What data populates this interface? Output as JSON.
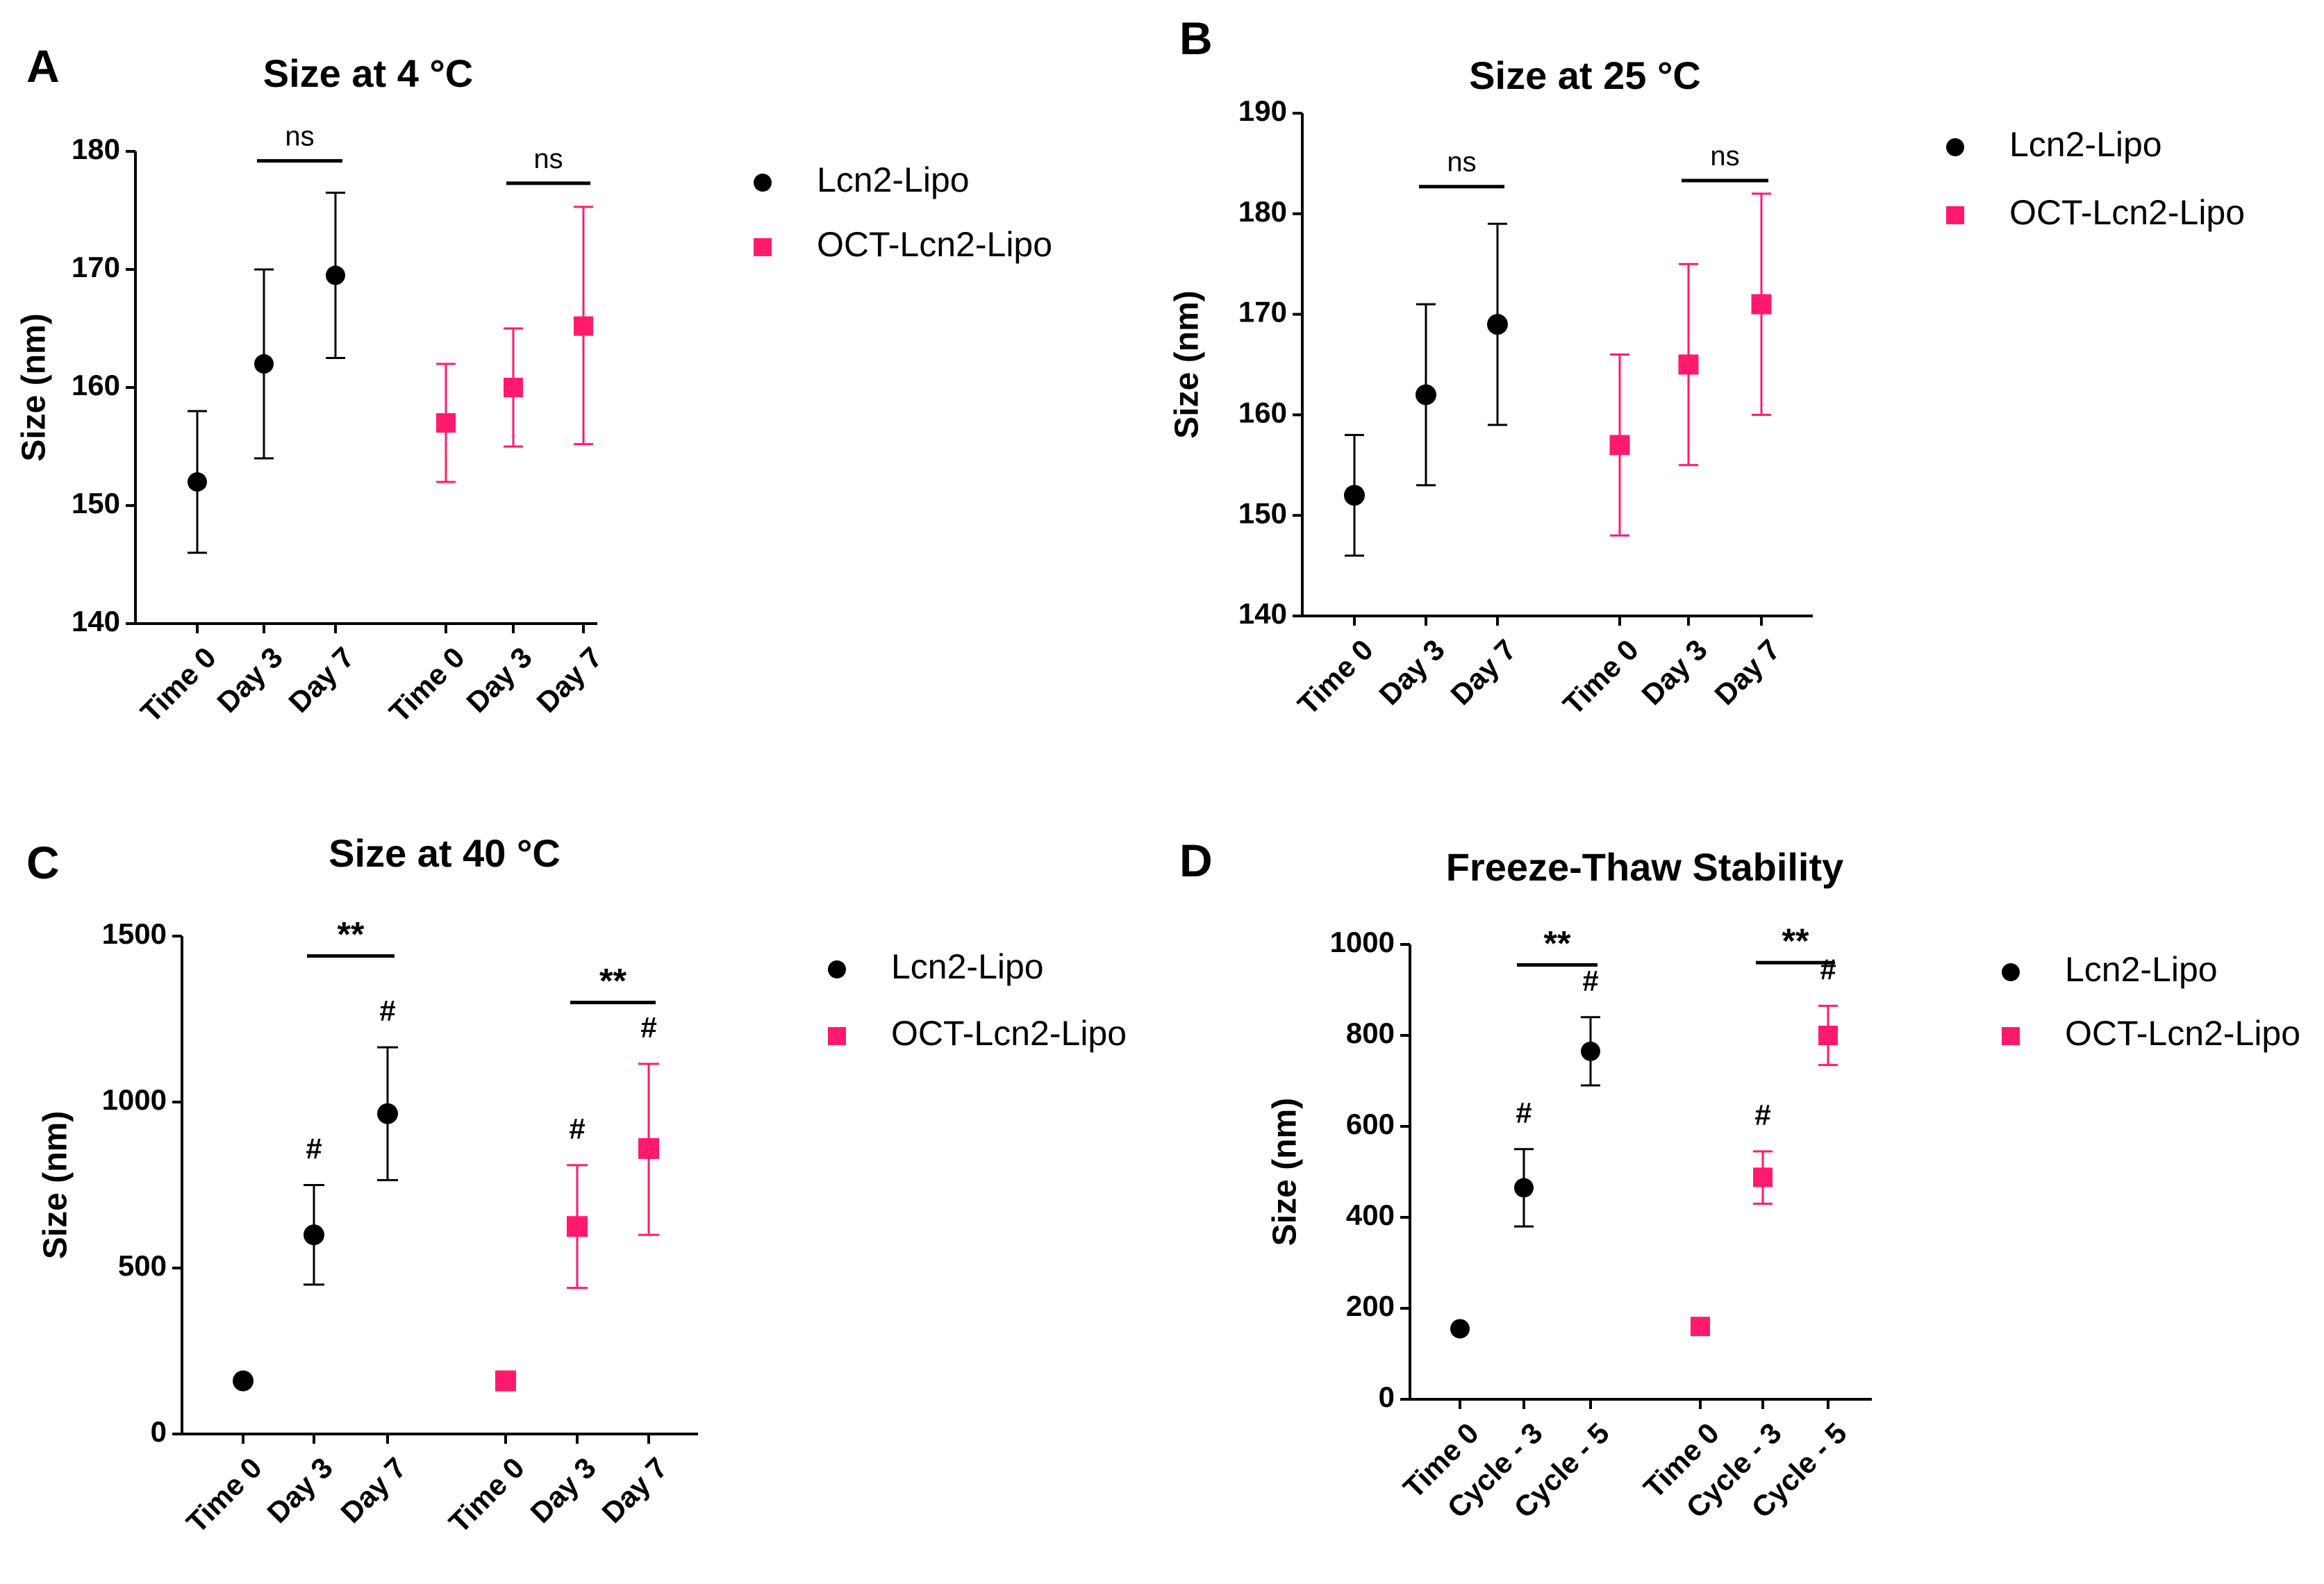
{
  "colors": {
    "Lcn2-Lipo": "#000000",
    "OCT-Lcn2-Lipo": "#ff1a6e"
  },
  "chart_data": [
    {
      "panel": "A",
      "type": "scatter",
      "title": "Size at 4 °C",
      "xlabel": "",
      "ylabel": "Size (nm)",
      "ylim": [
        140,
        180
      ],
      "yticks": [
        140,
        150,
        160,
        170,
        180
      ],
      "legend": [
        "Lcn2-Lipo",
        "OCT-Lcn2-Lipo"
      ],
      "legend_position": "right",
      "groups": [
        {
          "series": "Lcn2-Lipo",
          "categories": [
            "Time 0",
            "Day 3",
            "Day 7"
          ],
          "values": [
            152,
            162,
            169.5
          ],
          "err_low": [
            146,
            154,
            162.5
          ],
          "err_high": [
            158,
            170,
            176.5
          ]
        },
        {
          "series": "OCT-Lcn2-Lipo",
          "categories": [
            "Time 0",
            "Day 3",
            "Day 7"
          ],
          "values": [
            157,
            160,
            165.2
          ],
          "err_low": [
            152,
            155,
            155.2
          ],
          "err_high": [
            162,
            165,
            175.3
          ]
        }
      ],
      "significance": [
        {
          "group": 0,
          "from": 1,
          "to": 2,
          "label": "ns",
          "y": 179.2
        },
        {
          "group": 1,
          "from": 1,
          "to": 2,
          "label": "ns",
          "y": 177.3
        }
      ],
      "hash_marks": []
    },
    {
      "panel": "B",
      "type": "scatter",
      "title": "Size at 25 °C",
      "xlabel": "",
      "ylabel": "Size (nm)",
      "ylim": [
        140,
        190
      ],
      "yticks": [
        140,
        150,
        160,
        170,
        180,
        190
      ],
      "legend": [
        "Lcn2-Lipo",
        "OCT-Lcn2-Lipo"
      ],
      "legend_position": "right",
      "groups": [
        {
          "series": "Lcn2-Lipo",
          "categories": [
            "Time 0",
            "Day 3",
            "Day 7"
          ],
          "values": [
            152,
            162,
            169
          ],
          "err_low": [
            146,
            153,
            159
          ],
          "err_high": [
            158,
            171,
            179
          ]
        },
        {
          "series": "OCT-Lcn2-Lipo",
          "categories": [
            "Time 0",
            "Day 3",
            "Day 7"
          ],
          "values": [
            157,
            165,
            171
          ],
          "err_low": [
            148,
            155,
            160
          ],
          "err_high": [
            166,
            175,
            182
          ]
        }
      ],
      "significance": [
        {
          "group": 0,
          "from": 1,
          "to": 2,
          "label": "ns",
          "y": 182.7
        },
        {
          "group": 1,
          "from": 1,
          "to": 2,
          "label": "ns",
          "y": 183.3
        }
      ],
      "hash_marks": []
    },
    {
      "panel": "C",
      "type": "scatter",
      "title": "Size at 40 °C",
      "xlabel": "",
      "ylabel": "Size (nm)",
      "ylim": [
        0,
        1500
      ],
      "yticks": [
        0,
        500,
        1000,
        1500
      ],
      "legend": [
        "Lcn2-Lipo",
        "OCT-Lcn2-Lipo"
      ],
      "legend_position": "right",
      "groups": [
        {
          "series": "Lcn2-Lipo",
          "categories": [
            "Time 0",
            "Day 3",
            "Day 7"
          ],
          "values": [
            160,
            600,
            965
          ],
          "err_low": [
            160,
            450,
            765
          ],
          "err_high": [
            160,
            750,
            1165
          ]
        },
        {
          "series": "OCT-Lcn2-Lipo",
          "categories": [
            "Time 0",
            "Day 3",
            "Day 7"
          ],
          "values": [
            160,
            625,
            860
          ],
          "err_low": [
            160,
            440,
            600
          ],
          "err_high": [
            160,
            810,
            1115
          ]
        }
      ],
      "significance": [
        {
          "group": 0,
          "from": 1,
          "to": 2,
          "label": "**",
          "y": 1440
        },
        {
          "group": 1,
          "from": 1,
          "to": 2,
          "label": "**",
          "y": 1300
        }
      ],
      "hash_marks": [
        {
          "group": 0,
          "index": 1,
          "label": "#"
        },
        {
          "group": 0,
          "index": 2,
          "label": "#"
        },
        {
          "group": 1,
          "index": 1,
          "label": "#"
        },
        {
          "group": 1,
          "index": 2,
          "label": "#"
        }
      ]
    },
    {
      "panel": "D",
      "type": "scatter",
      "title": "Freeze-Thaw Stability",
      "xlabel": "",
      "ylabel": "Size (nm)",
      "ylim": [
        0,
        1000
      ],
      "yticks": [
        0,
        200,
        400,
        600,
        800,
        1000
      ],
      "legend": [
        "Lcn2-Lipo",
        "OCT-Lcn2-Lipo"
      ],
      "legend_position": "right",
      "groups": [
        {
          "series": "Lcn2-Lipo",
          "categories": [
            "Time 0",
            "Cycle - 3",
            "Cycle - 5"
          ],
          "values": [
            155,
            465,
            765
          ],
          "err_low": [
            155,
            380,
            690
          ],
          "err_high": [
            155,
            550,
            840
          ]
        },
        {
          "series": "OCT-Lcn2-Lipo",
          "categories": [
            "Time 0",
            "Cycle - 3",
            "Cycle - 5"
          ],
          "values": [
            160,
            488,
            800
          ],
          "err_low": [
            145,
            430,
            735
          ],
          "err_high": [
            175,
            545,
            865
          ]
        }
      ],
      "significance": [
        {
          "group": 0,
          "from": 1,
          "to": 2,
          "label": "**",
          "y": 955
        },
        {
          "group": 1,
          "from": 1,
          "to": 2,
          "label": "**",
          "y": 960
        }
      ],
      "hash_marks": [
        {
          "group": 0,
          "index": 1,
          "label": "#"
        },
        {
          "group": 0,
          "index": 2,
          "label": "#"
        },
        {
          "group": 1,
          "index": 1,
          "label": "#"
        },
        {
          "group": 1,
          "index": 2,
          "label": "#"
        }
      ]
    }
  ]
}
